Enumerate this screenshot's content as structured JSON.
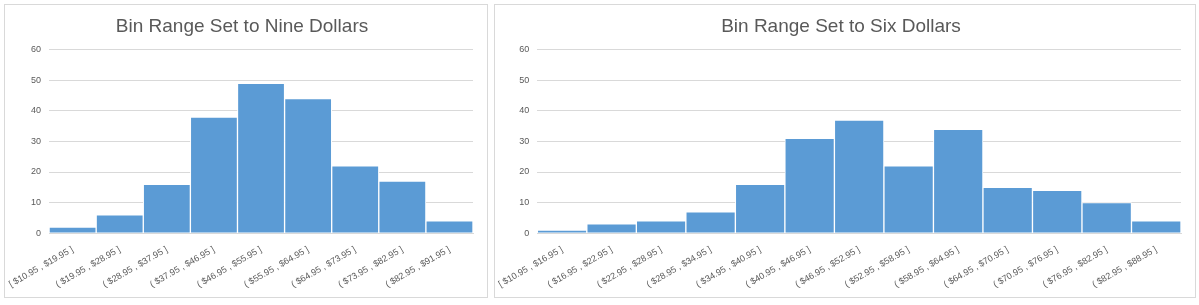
{
  "chart_data": [
    {
      "type": "bar",
      "title": "Bin Range Set to Nine Dollars",
      "bins": [
        10.95,
        19.95,
        28.95,
        37.95,
        46.95,
        55.95,
        64.95,
        73.95,
        82.95,
        91.95
      ],
      "categories": [
        "[ $10.95 , $19.95 ]",
        "( $19.95 , $28.95 ]",
        "( $28.95 , $37.95 ]",
        "( $37.95 , $46.95 ]",
        "( $46.95 , $55.95 ]",
        "( $55.95 , $64.95 ]",
        "( $64.95 , $73.95 ]",
        "( $73.95 , $82.95 ]",
        "( $82.95 , $91.95 ]"
      ],
      "values": [
        2,
        6,
        16,
        38,
        49,
        44,
        22,
        17,
        4
      ],
      "color": "#5b9bd5",
      "ylim": [
        0,
        60
      ],
      "yticks": [
        0,
        10,
        20,
        30,
        40,
        50,
        60
      ],
      "grid": true
    },
    {
      "type": "bar",
      "title": "Bin Range Set to Six Dollars",
      "bins": [
        10.95,
        16.95,
        22.95,
        28.95,
        34.95,
        40.95,
        46.95,
        52.95,
        58.95,
        64.95,
        70.95,
        76.95,
        82.95,
        88.95
      ],
      "categories": [
        "[ $10.95 , $16.95 ]",
        "( $16.95 , $22.95 ]",
        "( $22.95 , $28.95 ]",
        "( $28.95 , $34.95 ]",
        "( $34.95 , $40.95 ]",
        "( $40.95 , $46.95 ]",
        "( $46.95 , $52.95 ]",
        "( $52.95 , $58.95 ]",
        "( $58.95 , $64.95 ]",
        "( $64.95 , $70.95 ]",
        "( $70.95 , $76.95 ]",
        "( $76.95 , $82.95 ]",
        "( $82.95 , $88.95 ]"
      ],
      "values": [
        1,
        3,
        4,
        7,
        16,
        31,
        37,
        22,
        34,
        15,
        14,
        10,
        4
      ],
      "color": "#5b9bd5",
      "ylim": [
        0,
        60
      ],
      "yticks": [
        0,
        10,
        20,
        30,
        40,
        50,
        60
      ],
      "grid": true
    }
  ]
}
